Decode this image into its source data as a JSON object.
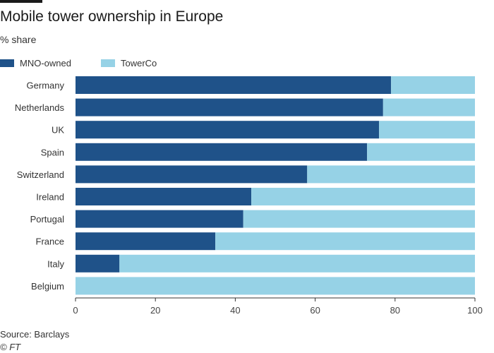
{
  "title": "Mobile tower ownership in Europe",
  "subtitle": "% share",
  "legend": {
    "mno_label": "MNO-owned",
    "towerco_label": "TowerCo"
  },
  "colors": {
    "mno": "#1f5289",
    "towerco": "#96d2e6",
    "axis": "#333333",
    "tick_text": "#444444"
  },
  "footer": {
    "source": "Source: Barclays",
    "copyright": "© FT"
  },
  "chart_data": {
    "type": "bar",
    "orientation": "horizontal",
    "stacked": true,
    "title": "Mobile tower ownership in Europe",
    "subtitle": "% share",
    "categories": [
      "Germany",
      "Netherlands",
      "UK",
      "Spain",
      "Switzerland",
      "Ireland",
      "Portugal",
      "France",
      "Italy",
      "Belgium"
    ],
    "series": [
      {
        "name": "MNO-owned",
        "values": [
          79,
          77,
          76,
          73,
          58,
          44,
          42,
          35,
          11,
          0
        ]
      },
      {
        "name": "TowerCo",
        "values": [
          21,
          23,
          24,
          27,
          42,
          56,
          58,
          65,
          89,
          100
        ]
      }
    ],
    "xlim": [
      0,
      100
    ],
    "xticks": [
      0,
      20,
      40,
      60,
      80,
      100
    ],
    "xlabel": "",
    "ylabel": "",
    "grid": false,
    "legend_position": "top-left"
  }
}
